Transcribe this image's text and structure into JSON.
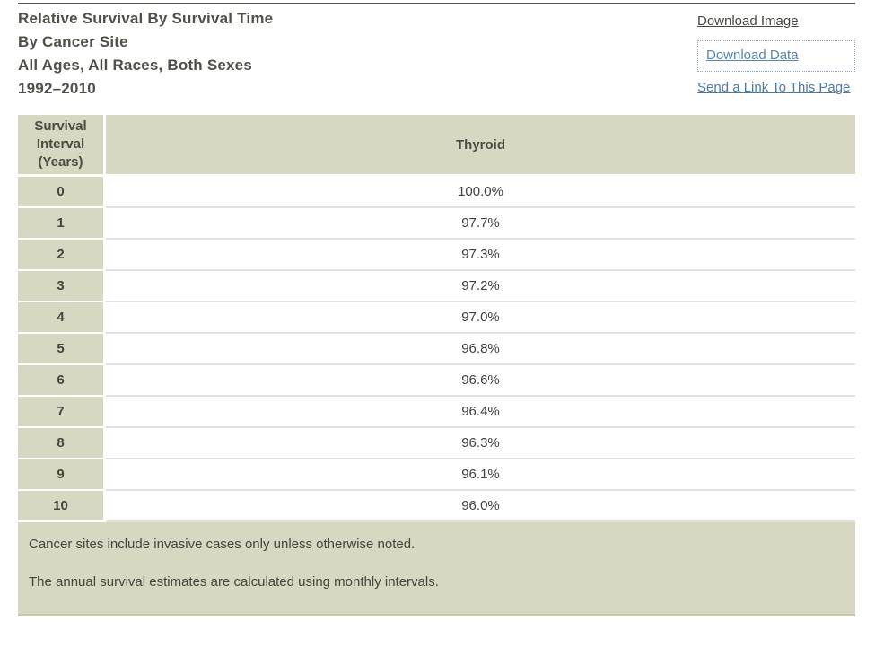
{
  "header": {
    "title_lines": [
      "Relative Survival By Survival Time",
      "By Cancer Site",
      "All Ages, All Races, Both Sexes",
      "1992–2010"
    ],
    "links": {
      "download_image": "Download Image",
      "download_data": "Download Data",
      "send_link": "Send a Link To This Page"
    }
  },
  "table": {
    "col1_header": "Survival Interval (Years)",
    "col2_header": "Thyroid",
    "rows": [
      {
        "interval": "0",
        "value": "100.0%"
      },
      {
        "interval": "1",
        "value": "97.7%"
      },
      {
        "interval": "2",
        "value": "97.3%"
      },
      {
        "interval": "3",
        "value": "97.2%"
      },
      {
        "interval": "4",
        "value": "97.0%"
      },
      {
        "interval": "5",
        "value": "96.8%"
      },
      {
        "interval": "6",
        "value": "96.6%"
      },
      {
        "interval": "7",
        "value": "96.4%"
      },
      {
        "interval": "8",
        "value": "96.3%"
      },
      {
        "interval": "9",
        "value": "96.1%"
      },
      {
        "interval": "10",
        "value": "96.0%"
      }
    ]
  },
  "notes": [
    "Cancer sites include invasive cases only unless otherwise noted.",
    "The annual survival estimates are calculated using monthly intervals."
  ],
  "chart_data": {
    "type": "table",
    "title": "Relative Survival By Survival Time, By Cancer Site, All Ages, All Races, Both Sexes, 1992–2010",
    "categories": [
      0,
      1,
      2,
      3,
      4,
      5,
      6,
      7,
      8,
      9,
      10
    ],
    "xlabel": "Survival Interval (Years)",
    "series": [
      {
        "name": "Thyroid",
        "values": [
          100.0,
          97.7,
          97.3,
          97.2,
          97.0,
          96.8,
          96.6,
          96.4,
          96.3,
          96.1,
          96.0
        ]
      }
    ],
    "unit": "% relative survival"
  },
  "colors": {
    "beige": "#d8d8c2",
    "beige_dark_edge": "#c7c7b0",
    "link_blue": "#4a7aa6",
    "link_gray": "#47463f",
    "rule_dark": "#55544c",
    "row_separator": "#e1e1df",
    "text_dark": "#45443d"
  }
}
